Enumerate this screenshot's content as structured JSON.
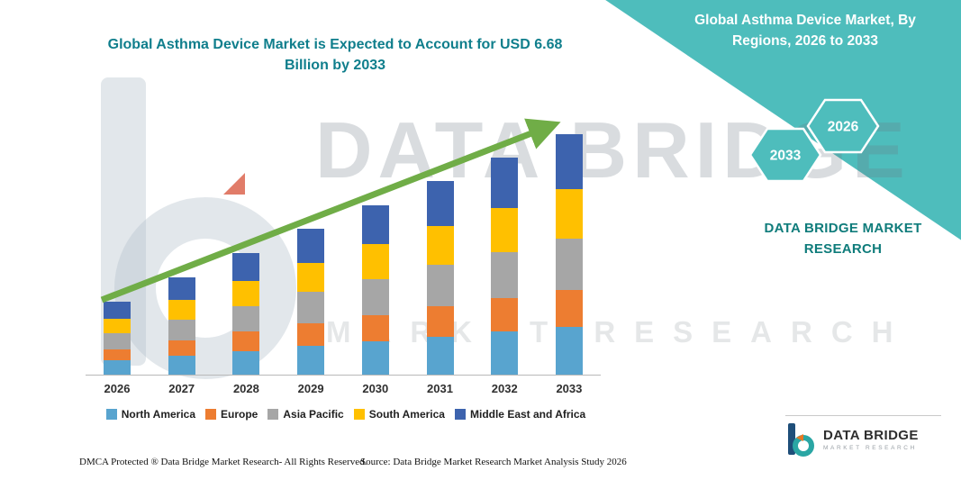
{
  "titles": {
    "main": "Global Asthma Device Market is Expected to Account for USD 6.68 Billion by 2033",
    "side": "Global Asthma Device Market, By Regions, 2026 to 2033"
  },
  "side_panel": {
    "hexagon_back": "2033",
    "hexagon_front": "2026",
    "brand_caption": "DATA BRIDGE MARKET RESEARCH",
    "accent_color": "#4EBDBC"
  },
  "watermark": {
    "line1": "DATA BRIDGE",
    "line2": "MARKET RESEARCH"
  },
  "chart_data": {
    "type": "bar",
    "stacked": true,
    "title": "Global Asthma Device Market is Expected to Account for USD 6.68 Billion by 2033",
    "categories": [
      "2026",
      "2027",
      "2028",
      "2029",
      "2030",
      "2031",
      "2032",
      "2033"
    ],
    "series": [
      {
        "name": "North America",
        "color": "#58A4CF",
        "values": [
          0.4,
          0.53,
          0.66,
          0.8,
          0.93,
          1.06,
          1.19,
          1.32
        ]
      },
      {
        "name": "Europe",
        "color": "#ED7D31",
        "values": [
          0.31,
          0.42,
          0.53,
          0.63,
          0.73,
          0.84,
          0.94,
          1.04
        ]
      },
      {
        "name": "Asia Pacific",
        "color": "#A6A6A6",
        "values": [
          0.43,
          0.57,
          0.72,
          0.86,
          1.0,
          1.14,
          1.28,
          1.42
        ]
      },
      {
        "name": "South America",
        "color": "#FFC000",
        "values": [
          0.41,
          0.55,
          0.69,
          0.82,
          0.96,
          1.09,
          1.22,
          1.36
        ]
      },
      {
        "name": "Middle East and Africa",
        "color": "#3D63AE",
        "values": [
          0.47,
          0.63,
          0.78,
          0.95,
          1.09,
          1.24,
          1.39,
          1.54
        ]
      }
    ],
    "totals": [
      2.02,
      2.7,
      3.38,
      4.06,
      4.71,
      5.37,
      6.02,
      6.68
    ],
    "unit": "USD Billion",
    "ylim": [
      0,
      7
    ],
    "grid": false,
    "legend_position": "bottom",
    "annotations": [
      "upward trend arrow"
    ],
    "arrow_color": "#70AD47"
  },
  "footer": {
    "dmca": "DMCA Protected ® Data Bridge Market Research-  All Rights Reserved.",
    "source": "Source: Data Bridge Market Research  Market Analysis Study 2026"
  },
  "logo": {
    "name": "DATA BRIDGE",
    "subtitle": "MARKET RESEARCH"
  }
}
